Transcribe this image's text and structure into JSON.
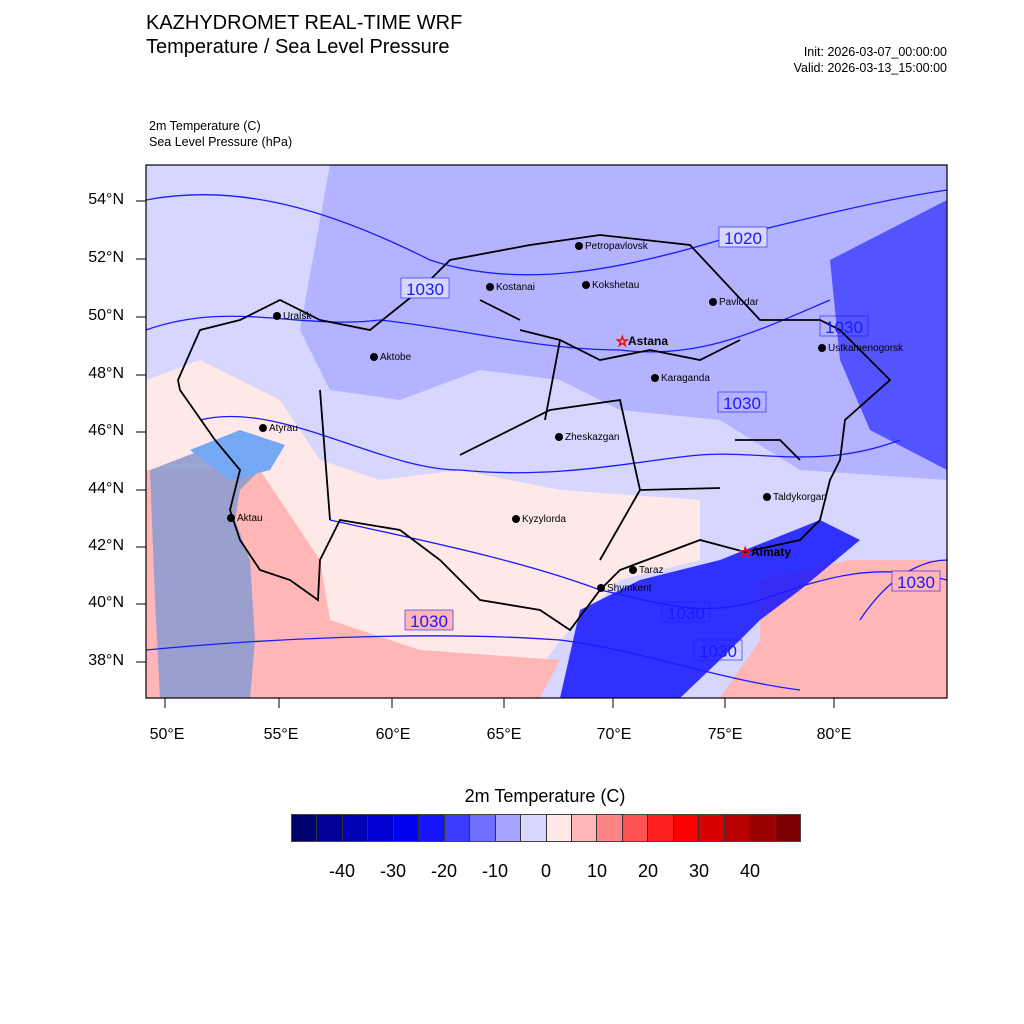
{
  "header": {
    "title": "KAZHYDROMET REAL-TIME WRF",
    "subtitle": "Temperature / Sea Level Pressure",
    "init": "Init: 2026-03-07_00:00:00",
    "valid": "Valid: 2026-03-13_15:00:00",
    "field1": "2m Temperature   (C)",
    "field2": "Sea Level Pressure   (hPa)"
  },
  "axes": {
    "lat_labels": [
      "54°N",
      "52°N",
      "50°N",
      "48°N",
      "46°N",
      "44°N",
      "42°N",
      "40°N",
      "38°N"
    ],
    "lon_labels": [
      "50°E",
      "55°E",
      "60°E",
      "65°E",
      "70°E",
      "75°E",
      "80°E"
    ]
  },
  "cities": [
    {
      "name": "Petropavlovsk",
      "capital": false
    },
    {
      "name": "Kostanai",
      "capital": false
    },
    {
      "name": "Kokshetau",
      "capital": false
    },
    {
      "name": "Pavlodar",
      "capital": false
    },
    {
      "name": "Uralsk",
      "capital": false
    },
    {
      "name": "Aktobe",
      "capital": false
    },
    {
      "name": "Astana",
      "capital": true
    },
    {
      "name": "Karaganda",
      "capital": false
    },
    {
      "name": "Ustkamenogorsk",
      "capital": false
    },
    {
      "name": "Atyrau",
      "capital": false
    },
    {
      "name": "Zheskazgan",
      "capital": false
    },
    {
      "name": "Aktau",
      "capital": false
    },
    {
      "name": "Kyzylorda",
      "capital": false
    },
    {
      "name": "Taldykorgan",
      "capital": false
    },
    {
      "name": "Almaty",
      "capital": true
    },
    {
      "name": "Taraz",
      "capital": false
    },
    {
      "name": "Shymkent",
      "capital": false
    }
  ],
  "isobar_labels": [
    "1020",
    "1030",
    "1030",
    "1030",
    "1030",
    "1030",
    "1030",
    "1030"
  ],
  "colorbar": {
    "title": "2m Temperature  (C)",
    "range": [
      -50,
      50
    ],
    "step": 5,
    "colors": [
      "#00006e",
      "#000096",
      "#0000b4",
      "#0000d2",
      "#0000f0",
      "#1414ff",
      "#3c3cff",
      "#7070ff",
      "#a4a4ff",
      "#d6d6ff",
      "#ffe8e8",
      "#ffb6b6",
      "#ff8484",
      "#ff5252",
      "#ff2020",
      "#fa0000",
      "#d80000",
      "#b90000",
      "#9a0000",
      "#7c0000"
    ],
    "labels": [
      "-40",
      "-30",
      "-20",
      "-10",
      "0",
      "10",
      "20",
      "30",
      "40"
    ]
  }
}
